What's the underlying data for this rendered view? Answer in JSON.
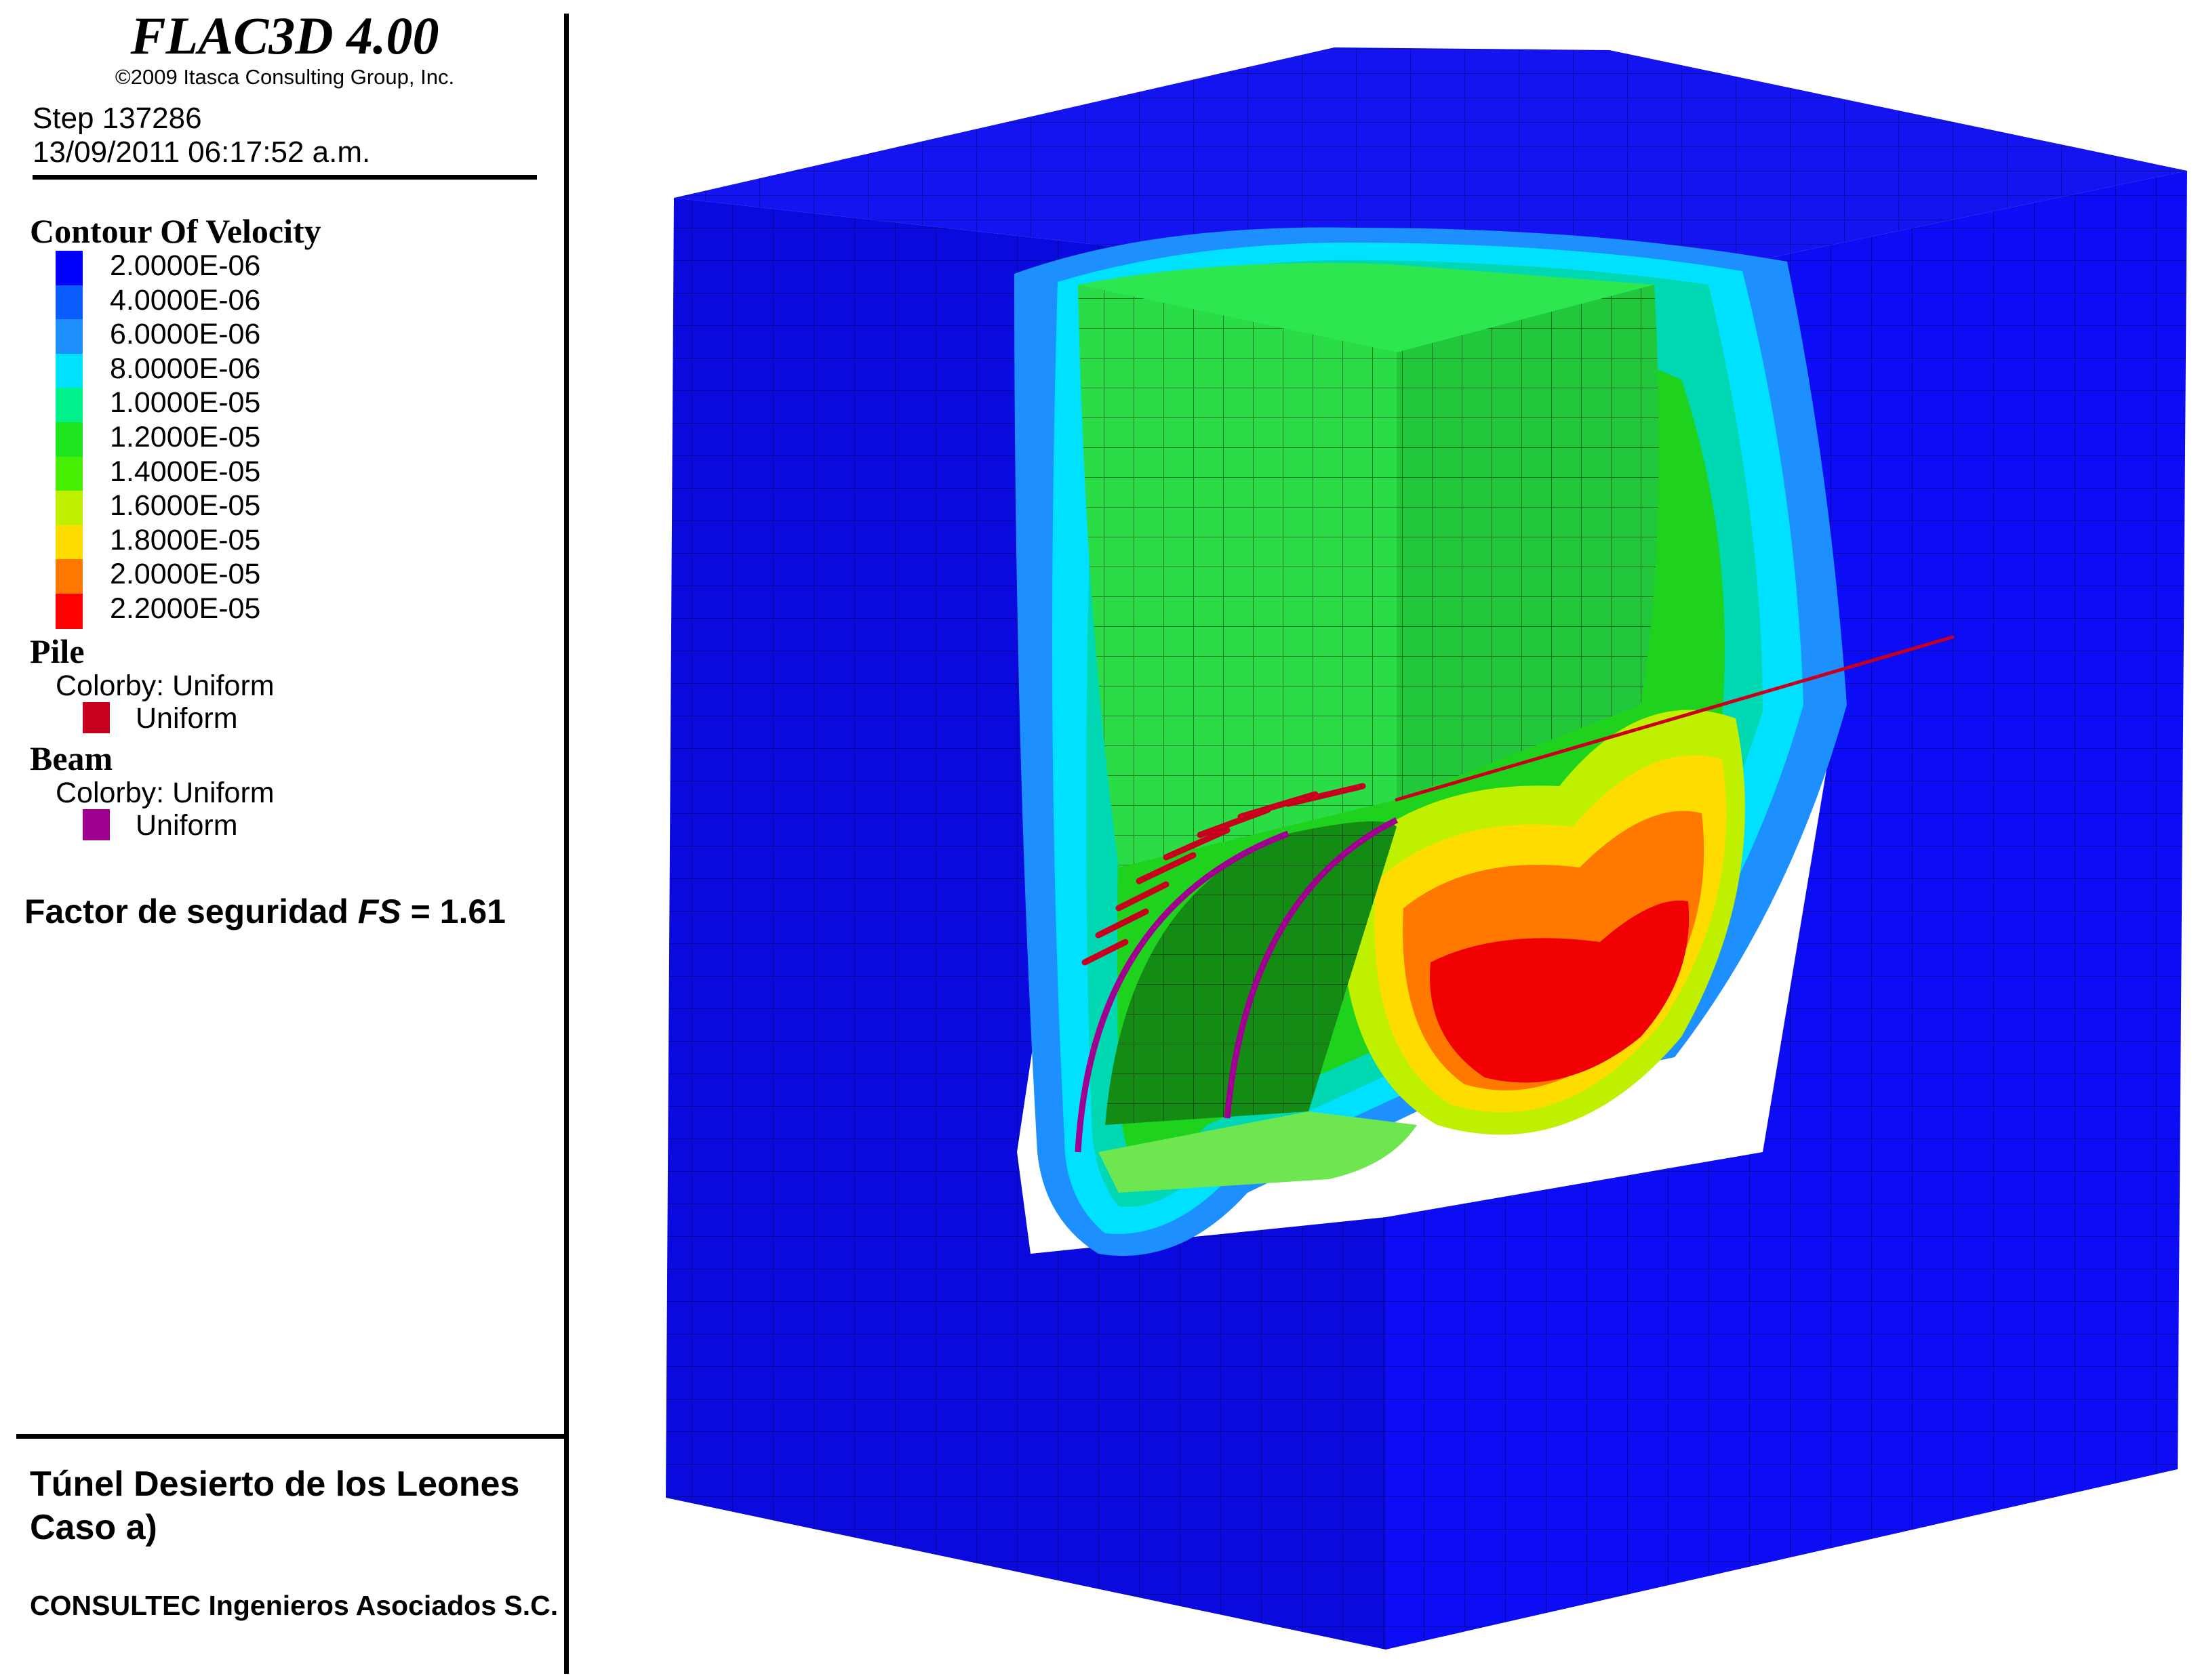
{
  "header": {
    "app_title": "FLAC3D 4.00",
    "copyright": "©2009 Itasca Consulting Group, Inc.",
    "step": "Step 137286",
    "datetime": "13/09/2011 06:17:52 a.m."
  },
  "legend": {
    "title": "Contour Of Velocity",
    "entries": [
      {
        "label": "2.0000E-06",
        "color": "#0000ff"
      },
      {
        "label": "4.0000E-06",
        "color": "#0a5cff"
      },
      {
        "label": "6.0000E-06",
        "color": "#1e8fff"
      },
      {
        "label": "8.0000E-06",
        "color": "#00e1ff"
      },
      {
        "label": "1.0000E-05",
        "color": "#00f08c"
      },
      {
        "label": "1.2000E-05",
        "color": "#1ee61e"
      },
      {
        "label": "1.4000E-05",
        "color": "#46f000"
      },
      {
        "label": "1.6000E-05",
        "color": "#bef000"
      },
      {
        "label": "1.8000E-05",
        "color": "#ffdc00"
      },
      {
        "label": "2.0000E-05",
        "color": "#ff7800"
      },
      {
        "label": "2.2000E-05",
        "color": "#ff0000"
      }
    ]
  },
  "pile": {
    "title": "Pile",
    "colorby": "Colorby: Uniform",
    "uniform_label": "Uniform",
    "color": "#c8001e"
  },
  "beam": {
    "title": "Beam",
    "colorby": "Colorby: Uniform",
    "uniform_label": "Uniform",
    "color": "#a00090"
  },
  "safety_factor": {
    "prefix": "Factor de seguridad ",
    "symbol": "FS",
    "suffix": " = 1.61"
  },
  "footer": {
    "project_title": "Túnel Desierto de los Leones",
    "project_case": "Caso a)",
    "company": "CONSULTEC Ingenieros Asociados S.C."
  }
}
